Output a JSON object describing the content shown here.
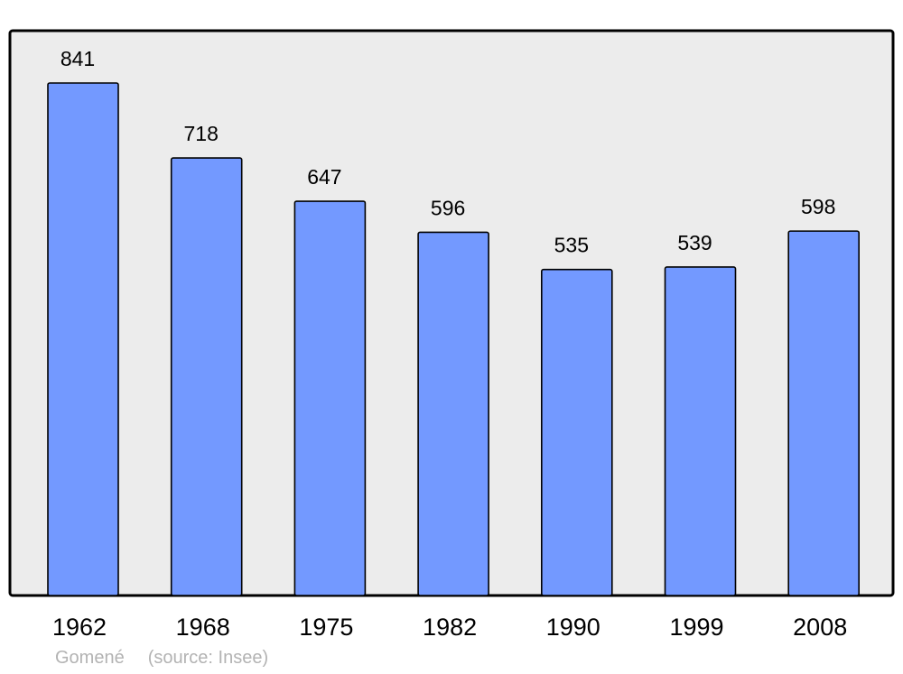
{
  "chart_data": {
    "type": "bar",
    "categories": [
      "1962",
      "1968",
      "1975",
      "1982",
      "1990",
      "1999",
      "2008"
    ],
    "values": [
      841,
      718,
      647,
      596,
      535,
      539,
      598
    ],
    "title": "",
    "xlabel": "",
    "ylabel": "",
    "grid": false,
    "legend": "none",
    "colors": {
      "bar": "#7399ff",
      "plot_background": "#ececec",
      "frame": "#000000"
    }
  },
  "footer": {
    "commune": "Gomené",
    "source": "(source: Insee)"
  }
}
